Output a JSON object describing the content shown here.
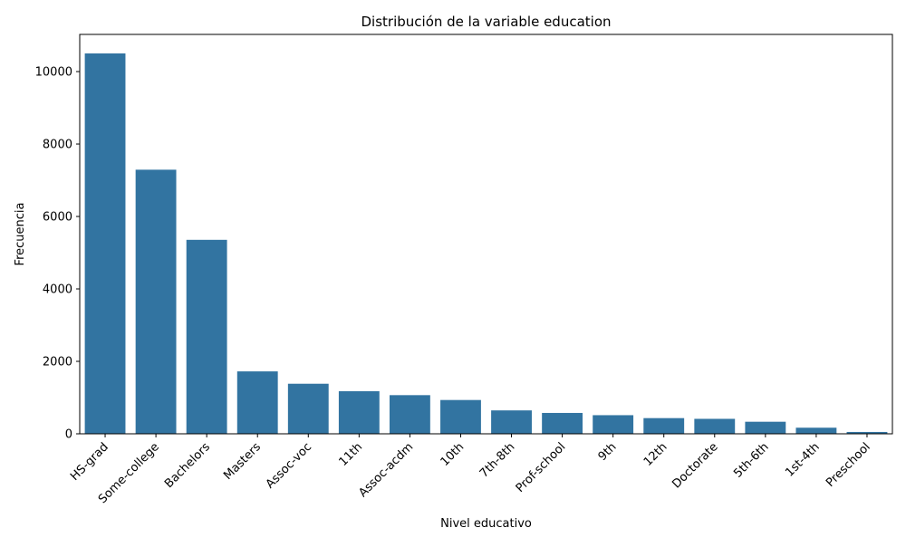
{
  "chart_data": {
    "type": "bar",
    "title": "Distribución de la variable education",
    "xlabel": "Nivel educativo",
    "ylabel": "Frecuencia",
    "categories": [
      "HS-grad",
      "Some-college",
      "Bachelors",
      "Masters",
      "Assoc-voc",
      "11th",
      "Assoc-acdm",
      "10th",
      "7th-8th",
      "Prof-school",
      "9th",
      "12th",
      "Doctorate",
      "5th-6th",
      "1st-4th",
      "Preschool"
    ],
    "values": [
      10501,
      7291,
      5355,
      1723,
      1382,
      1175,
      1067,
      933,
      646,
      576,
      514,
      433,
      413,
      333,
      168,
      51
    ],
    "ylim": [
      0,
      11026
    ],
    "yticks": [
      0,
      2000,
      4000,
      6000,
      8000,
      10000
    ],
    "grid": false,
    "bar_color": "#3274a1"
  }
}
